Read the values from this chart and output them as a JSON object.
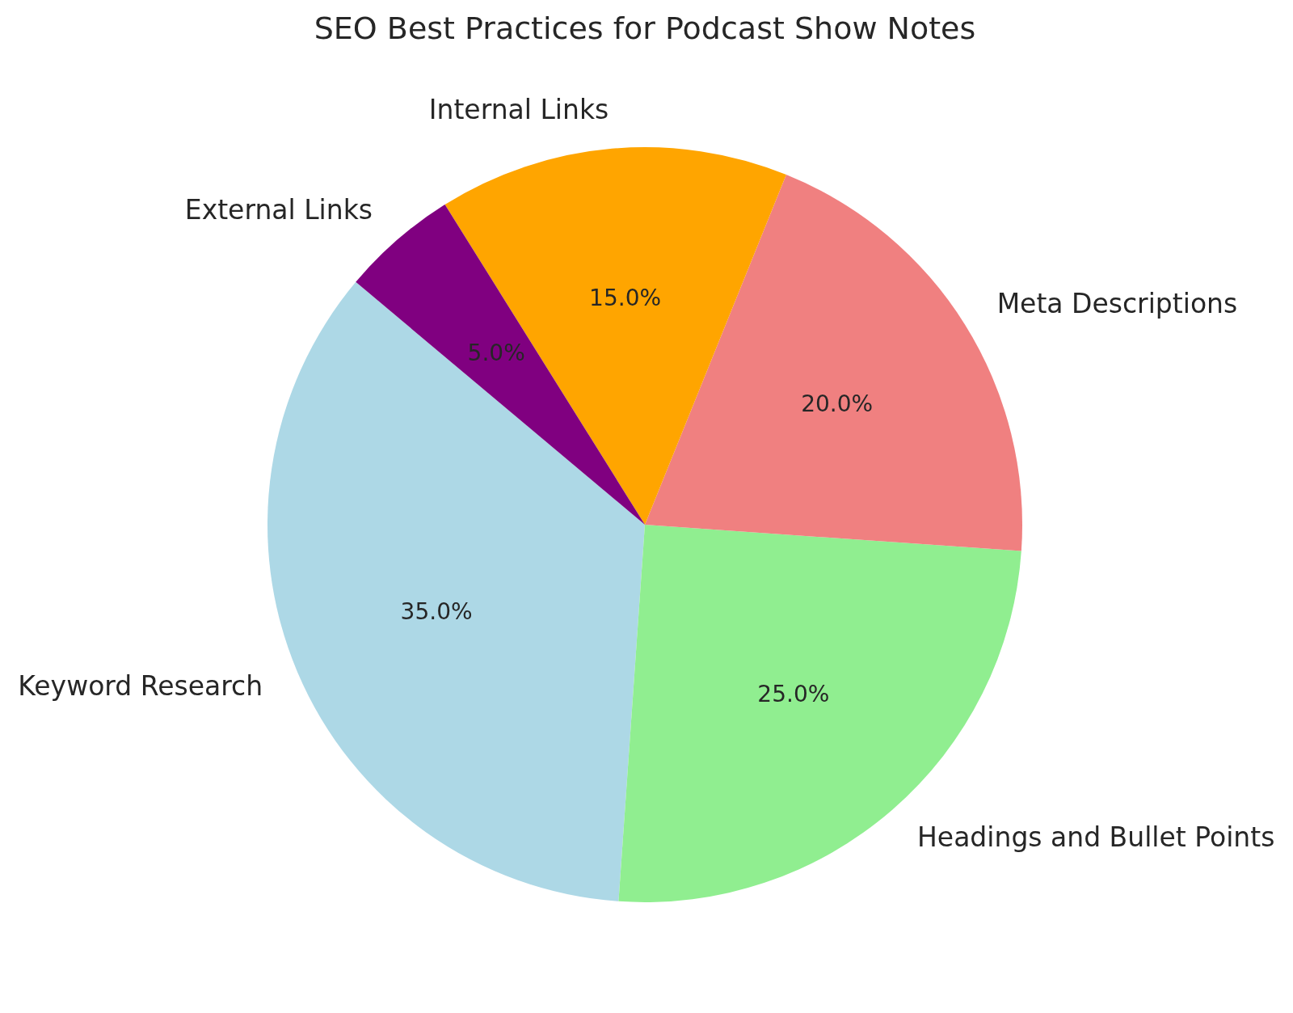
{
  "chart_data": {
    "type": "pie",
    "title": "SEO Best Practices for Podcast Show Notes",
    "categories": [
      "Keyword Research",
      "Headings and Bullet Points",
      "Meta Descriptions",
      "Internal Links",
      "External Links"
    ],
    "values": [
      35,
      25,
      20,
      15,
      5
    ],
    "colors": [
      "#add8e6",
      "#90ee90",
      "#f08080",
      "#ffa500",
      "#800080"
    ],
    "value_labels": [
      "35.0%",
      "25.0%",
      "20.0%",
      "15.0%",
      "5.0%"
    ]
  }
}
